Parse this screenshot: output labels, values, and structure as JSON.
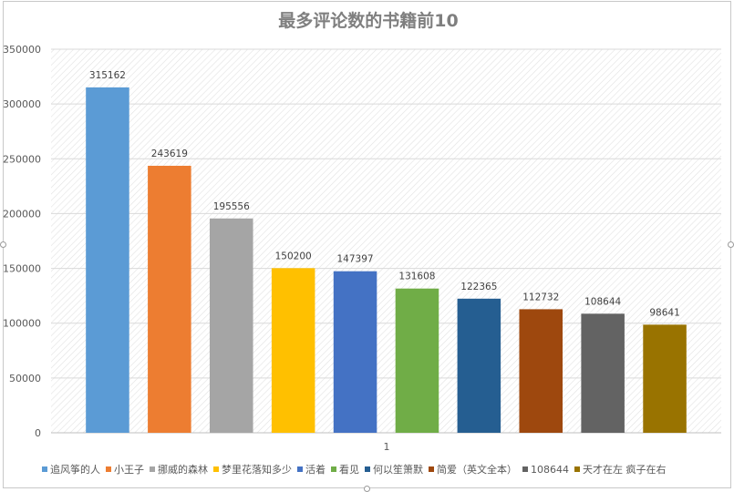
{
  "chart_data": {
    "type": "bar",
    "title": "最多评论数的书籍前10",
    "x_tick": "1",
    "ylim": [
      0,
      350000
    ],
    "yticks": [
      0,
      50000,
      100000,
      150000,
      200000,
      250000,
      300000,
      350000
    ],
    "grid": true,
    "legend_position": "bottom",
    "series": [
      {
        "name": "追风筝的人",
        "value": 315162,
        "color": "#5b9bd5"
      },
      {
        "name": "小王子",
        "value": 243619,
        "color": "#ed7d31"
      },
      {
        "name": "挪威的森林",
        "value": 195556,
        "color": "#a5a5a5"
      },
      {
        "name": "梦里花落知多少",
        "value": 150200,
        "color": "#ffc000"
      },
      {
        "name": "活着",
        "value": 147397,
        "color": "#4472c4"
      },
      {
        "name": "看见",
        "value": 131608,
        "color": "#70ad47"
      },
      {
        "name": "何以笙箫默",
        "value": 122365,
        "color": "#255e91"
      },
      {
        "name": "简爱（英文全本）",
        "value": 112732,
        "color": "#9e480e"
      },
      {
        "name": "108644",
        "value": 108644,
        "color": "#636363"
      },
      {
        "name": "天才在左 疯子在右",
        "value": 98641,
        "color": "#997300"
      }
    ]
  }
}
